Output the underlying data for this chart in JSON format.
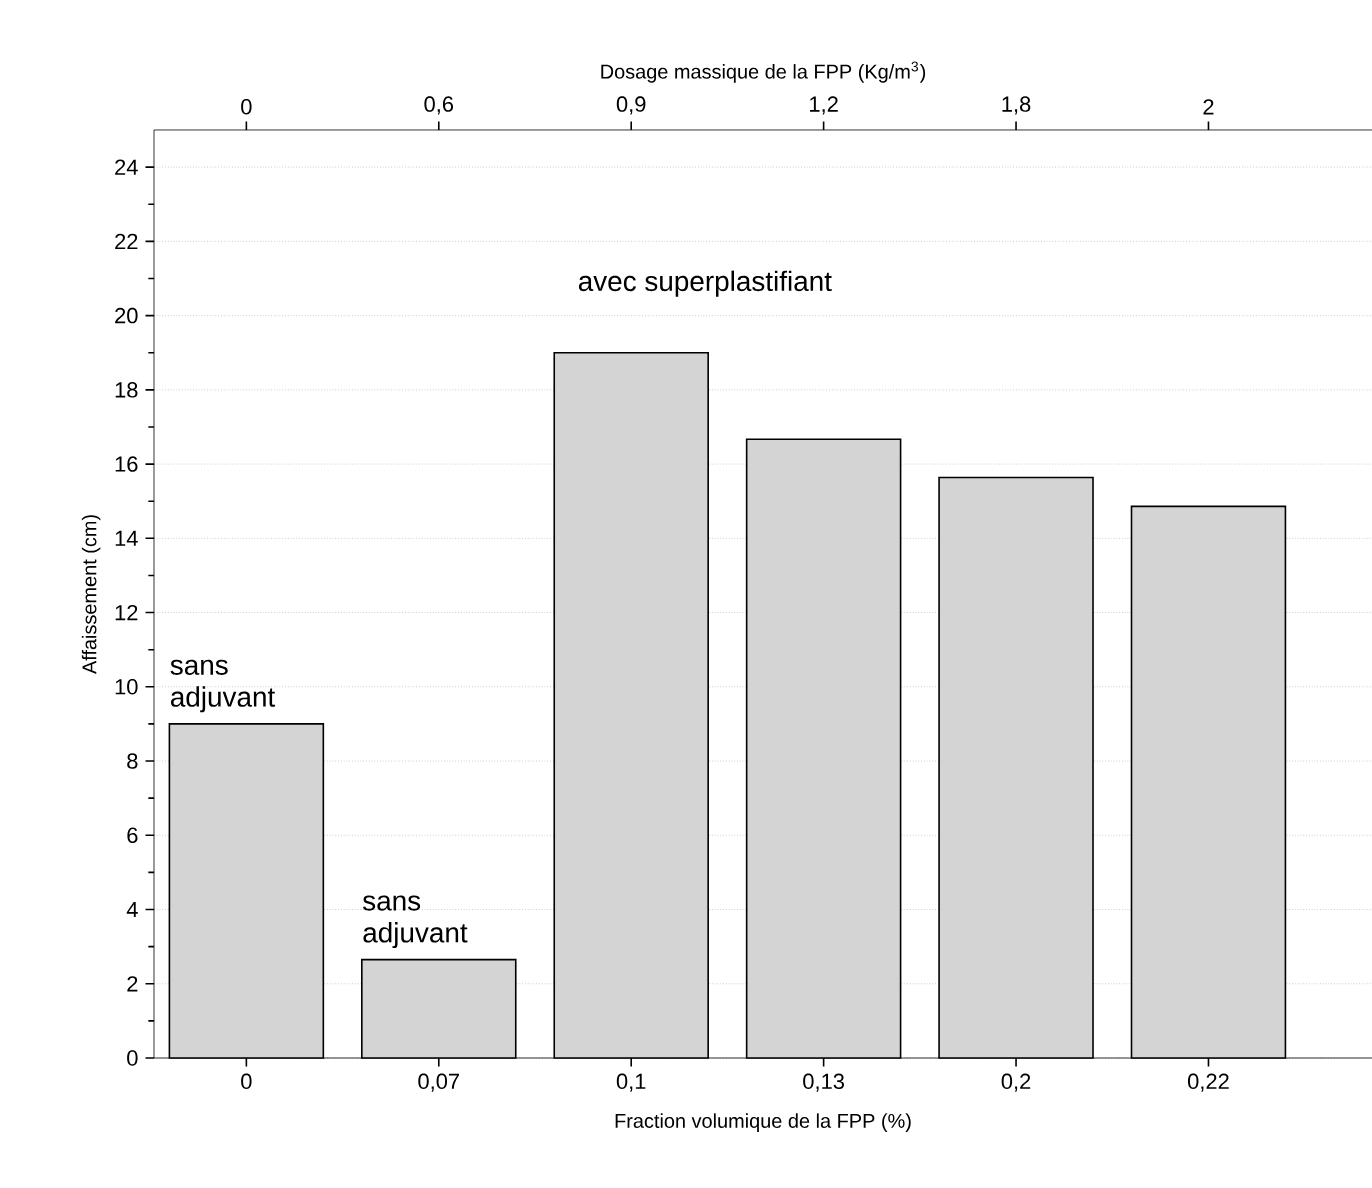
{
  "chart_data": {
    "type": "bar",
    "xlabel": "Fraction volumique de la FPP (%)",
    "ylabel": "Affaissement (cm)",
    "x2label": "Dosage massique de la FPP (Kg/m$^{3}$)",
    "categories": [
      "0",
      "0,07",
      "0,1",
      "0,13",
      "0,2",
      "0,22"
    ],
    "values": [
      9.0,
      2.65,
      19.0,
      16.67,
      15.64,
      14.86
    ],
    "color": "#d4d4d4",
    "ylim": [
      0,
      25
    ],
    "yticks": [
      0,
      2,
      4,
      6,
      8,
      10,
      12,
      14,
      16,
      18,
      20,
      22,
      24
    ],
    "grid": "y",
    "annotations": [
      "sans adjuvant",
      "sans adjuvant",
      "avec superplastifiant",
      "0",
      "0,6",
      "0,9",
      "1,2",
      "1,8",
      "2"
    ]
  }
}
